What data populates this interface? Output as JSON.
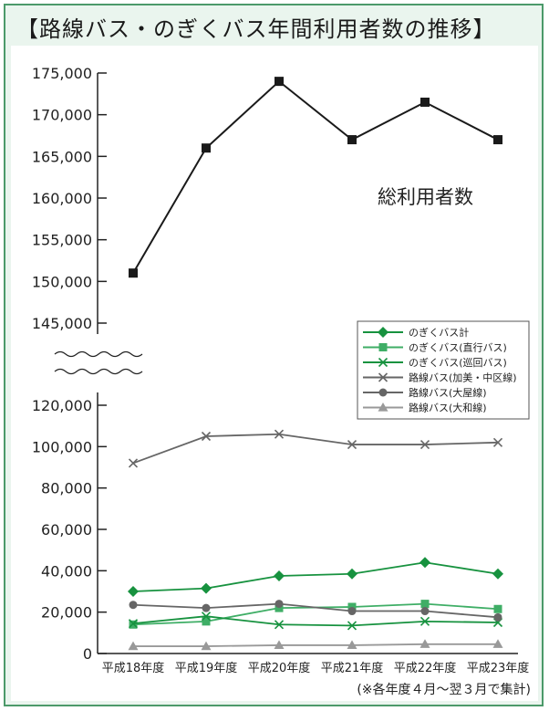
{
  "title": "【路線バス・のぎくバス年間利用者数の推移】",
  "annotation": "総利用者数",
  "footnote": "(※各年度４月〜翌３月で集計)",
  "chart_data": {
    "type": "line",
    "title": "【路線バス・のぎくバス年間利用者数の推移】",
    "xlabel": "",
    "ylabel": "",
    "categories": [
      "平成18年度",
      "平成19年度",
      "平成20年度",
      "平成21年度",
      "平成22年度",
      "平成23年度"
    ],
    "y_axis_break": {
      "lower_range": [
        0,
        120000
      ],
      "upper_range": [
        145000,
        175000
      ]
    },
    "y_ticks_lower": [
      0,
      20000,
      40000,
      60000,
      80000,
      100000,
      120000
    ],
    "y_ticks_upper": [
      145000,
      150000,
      155000,
      160000,
      165000,
      170000,
      175000
    ],
    "y_tick_labels_lower": [
      "0",
      "20,000",
      "40,000",
      "60,000",
      "80,000",
      "100,000",
      "120,000"
    ],
    "y_tick_labels_upper": [
      "145,000",
      "150,000",
      "155,000",
      "160,000",
      "165,000",
      "170,000",
      "175,000"
    ],
    "legend_position": "right-middle",
    "grid": false,
    "series": [
      {
        "name": "総利用者数",
        "marker": "square",
        "color": "#1a1a1a",
        "in_legend": false,
        "values": [
          151000,
          166000,
          174000,
          167000,
          171500,
          167000
        ]
      },
      {
        "name": "のぎくバス計",
        "marker": "diamond",
        "color": "#17923f",
        "in_legend": true,
        "values": [
          30000,
          31500,
          37500,
          38500,
          44000,
          38500
        ]
      },
      {
        "name": "のぎくバス(直行バス)",
        "marker": "square",
        "color": "#3fae66",
        "in_legend": true,
        "values": [
          14000,
          15500,
          22000,
          22500,
          24000,
          21500
        ]
      },
      {
        "name": "のぎくバス(巡回バス)",
        "marker": "x",
        "color": "#17923f",
        "in_legend": true,
        "values": [
          14500,
          18000,
          14000,
          13500,
          15500,
          15000
        ]
      },
      {
        "name": "路線バス(加美・中区線)",
        "marker": "x",
        "color": "#666666",
        "in_legend": true,
        "values": [
          92000,
          105000,
          106000,
          101000,
          101000,
          102000
        ]
      },
      {
        "name": "路線バス(大屋線)",
        "marker": "circle",
        "color": "#666666",
        "in_legend": true,
        "values": [
          23500,
          22000,
          24000,
          20500,
          20500,
          17500
        ]
      },
      {
        "name": "路線バス(大和線)",
        "marker": "triangle",
        "color": "#999999",
        "in_legend": true,
        "values": [
          3500,
          3500,
          4000,
          4000,
          4500,
          4500
        ]
      }
    ]
  }
}
